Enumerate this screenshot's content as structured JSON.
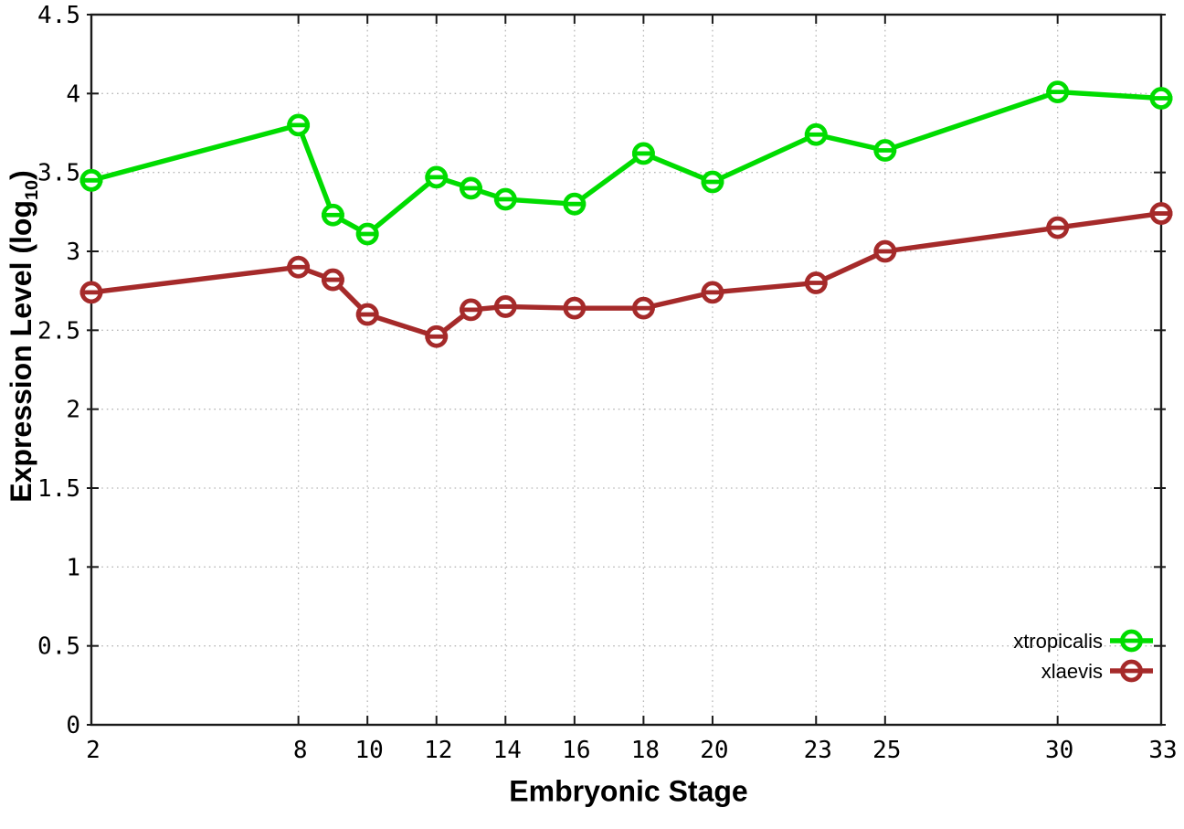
{
  "chart_data": {
    "type": "line",
    "title": "",
    "xlabel": "Embryonic Stage",
    "ylabel": "Expression Level (log10)",
    "ylabel_prefix": "Expression Level (log",
    "ylabel_subscript": "10",
    "ylabel_suffix": ")",
    "x": [
      2,
      8,
      9,
      10,
      12,
      13,
      14,
      16,
      18,
      20,
      23,
      25,
      30,
      33
    ],
    "series": [
      {
        "name": "xtropicalis",
        "color": "#00DC00",
        "values": [
          3.45,
          3.8,
          3.23,
          3.11,
          3.47,
          3.4,
          3.33,
          3.3,
          3.62,
          3.44,
          3.74,
          3.64,
          4.01,
          3.97
        ]
      },
      {
        "name": "xlaevis",
        "color": "#A52A2A",
        "values": [
          2.74,
          2.9,
          2.82,
          2.6,
          2.46,
          2.63,
          2.65,
          2.64,
          2.64,
          2.74,
          2.8,
          3.0,
          3.15,
          3.24
        ]
      }
    ],
    "xlim": [
      2,
      33
    ],
    "ylim": [
      0,
      4.5
    ],
    "xtick_labels": [
      "2",
      "8",
      "10",
      "12",
      "14",
      "16",
      "18",
      "20",
      "23",
      "25",
      "30",
      "33"
    ],
    "xtick_values": [
      2,
      8,
      10,
      12,
      14,
      16,
      18,
      20,
      23,
      25,
      30,
      33
    ],
    "ytick_labels": [
      "0",
      "0.5",
      "1",
      "1.5",
      "2",
      "2.5",
      "3",
      "3.5",
      "4",
      "4.5"
    ],
    "ytick_values": [
      0,
      0.5,
      1,
      1.5,
      2,
      2.5,
      3,
      3.5,
      4,
      4.5
    ],
    "grid": true,
    "grid_style": "dotted",
    "grid_color": "#b8b8b8",
    "axis_color": "#1a1a1a",
    "legend_position": "inside-bottom-right",
    "legend_entries": [
      "xtropicalis",
      "xlaevis"
    ]
  }
}
